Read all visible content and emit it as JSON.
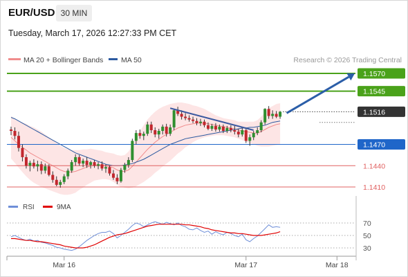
{
  "header": {
    "symbol": "EUR/USD",
    "timeframe": "30 MIN",
    "timestamp": "Tuesday, March 17, 2026 12:27:33 PM CET"
  },
  "legend": {
    "ma20_label": "MA 20 + Bollinger Bands",
    "ma20_color": "#f08c8c",
    "ma50_label": "MA 50",
    "ma50_color": "#2c5aa0",
    "source": "Research © 2026 Trading Central"
  },
  "rsi_legend": {
    "rsi_label": "RSI",
    "rsi_color": "#6f8fd8",
    "ma_label": "9MA",
    "ma_color": "#e00000"
  },
  "chart_data": {
    "type": "candlestick",
    "price_axis": {
      "min": 1.1395,
      "max": 1.1585
    },
    "x_ticks": [
      {
        "label": "Mar 16",
        "index": 14
      },
      {
        "label": "Mar 17",
        "index": 62
      },
      {
        "label": "Mar 18",
        "index": 86
      }
    ],
    "levels": [
      {
        "label": "1.1570",
        "value": 1.157,
        "color": "#4aa21a",
        "kind": "resistance"
      },
      {
        "label": "1.1545",
        "value": 1.1545,
        "color": "#4aa21a",
        "kind": "resistance"
      },
      {
        "label": "1.1516",
        "value": 1.1516,
        "color": "#333333",
        "kind": "last"
      },
      {
        "label": "1.1470",
        "value": 1.147,
        "color": "#1f66c9",
        "kind": "pivot"
      },
      {
        "label": "1.1440",
        "value": 1.144,
        "color": "#e06060",
        "kind": "support"
      },
      {
        "label": "1.1410",
        "value": 1.141,
        "color": "#e06060",
        "kind": "support"
      }
    ],
    "candles": [
      [
        1.1491,
        1.1495,
        1.1483,
        1.1489
      ],
      [
        1.1489,
        1.1494,
        1.1477,
        1.1482
      ],
      [
        1.1482,
        1.1488,
        1.146,
        1.1465
      ],
      [
        1.1465,
        1.147,
        1.1446,
        1.1452
      ],
      [
        1.1452,
        1.1456,
        1.1436,
        1.144
      ],
      [
        1.144,
        1.1447,
        1.1432,
        1.1444
      ],
      [
        1.1444,
        1.1449,
        1.1436,
        1.1439
      ],
      [
        1.1439,
        1.1447,
        1.1432,
        1.1442
      ],
      [
        1.1442,
        1.1446,
        1.1428,
        1.1433
      ],
      [
        1.1433,
        1.1443,
        1.1429,
        1.1439
      ],
      [
        1.1439,
        1.1442,
        1.1425,
        1.1427
      ],
      [
        1.1427,
        1.1432,
        1.1416,
        1.142
      ],
      [
        1.142,
        1.1425,
        1.1411,
        1.1413
      ],
      [
        1.1413,
        1.142,
        1.1409,
        1.1417
      ],
      [
        1.1417,
        1.1428,
        1.1414,
        1.1425
      ],
      [
        1.1425,
        1.1436,
        1.1421,
        1.1433
      ],
      [
        1.1433,
        1.1448,
        1.143,
        1.1445
      ],
      [
        1.1445,
        1.1456,
        1.144,
        1.1452
      ],
      [
        1.1452,
        1.1455,
        1.144,
        1.1443
      ],
      [
        1.1443,
        1.145,
        1.1438,
        1.1447
      ],
      [
        1.1447,
        1.1452,
        1.1437,
        1.1441
      ],
      [
        1.1441,
        1.1447,
        1.1436,
        1.1445
      ],
      [
        1.1445,
        1.1448,
        1.1437,
        1.144
      ],
      [
        1.144,
        1.1445,
        1.1435,
        1.1442
      ],
      [
        1.1442,
        1.1446,
        1.1433,
        1.1436
      ],
      [
        1.1436,
        1.1442,
        1.143,
        1.1438
      ],
      [
        1.1438,
        1.144,
        1.1426,
        1.1429
      ],
      [
        1.1429,
        1.1434,
        1.142,
        1.1423
      ],
      [
        1.1423,
        1.1428,
        1.1414,
        1.1418
      ],
      [
        1.1418,
        1.1437,
        1.1416,
        1.1434
      ],
      [
        1.1434,
        1.1444,
        1.143,
        1.1441
      ],
      [
        1.1441,
        1.1452,
        1.1437,
        1.1448
      ],
      [
        1.1448,
        1.1478,
        1.1445,
        1.1475
      ],
      [
        1.1475,
        1.149,
        1.147,
        1.1486
      ],
      [
        1.1486,
        1.1491,
        1.1478,
        1.1482
      ],
      [
        1.1482,
        1.1488,
        1.1476,
        1.1485
      ],
      [
        1.1485,
        1.1502,
        1.1482,
        1.1498
      ],
      [
        1.1498,
        1.1502,
        1.1486,
        1.149
      ],
      [
        1.149,
        1.1494,
        1.148,
        1.1484
      ],
      [
        1.1484,
        1.1492,
        1.1478,
        1.1489
      ],
      [
        1.1489,
        1.1498,
        1.1484,
        1.1495
      ],
      [
        1.1495,
        1.1499,
        1.1481,
        1.1485
      ],
      [
        1.1485,
        1.1498,
        1.1482,
        1.1494
      ],
      [
        1.1494,
        1.152,
        1.149,
        1.1518
      ],
      [
        1.1518,
        1.1523,
        1.151,
        1.1513
      ],
      [
        1.1513,
        1.1518,
        1.1505,
        1.1509
      ],
      [
        1.1509,
        1.1514,
        1.1504,
        1.1507
      ],
      [
        1.1507,
        1.1511,
        1.1502,
        1.1505
      ],
      [
        1.1505,
        1.1509,
        1.15,
        1.1503
      ],
      [
        1.1503,
        1.1507,
        1.1497,
        1.15
      ],
      [
        1.15,
        1.1506,
        1.1496,
        1.1502
      ],
      [
        1.1502,
        1.1505,
        1.1494,
        1.1497
      ],
      [
        1.1497,
        1.1501,
        1.149,
        1.1492
      ],
      [
        1.1492,
        1.1499,
        1.1489,
        1.1496
      ],
      [
        1.1496,
        1.15,
        1.1488,
        1.1491
      ],
      [
        1.1491,
        1.1498,
        1.1488,
        1.1495
      ],
      [
        1.1495,
        1.1498,
        1.1486,
        1.1489
      ],
      [
        1.1489,
        1.1496,
        1.1486,
        1.1493
      ],
      [
        1.1493,
        1.1497,
        1.1487,
        1.149
      ],
      [
        1.149,
        1.1496,
        1.1484,
        1.1488
      ],
      [
        1.1488,
        1.1492,
        1.148,
        1.1484
      ],
      [
        1.1484,
        1.1493,
        1.1481,
        1.149
      ],
      [
        1.149,
        1.1494,
        1.1472,
        1.1475
      ],
      [
        1.1475,
        1.1484,
        1.1468,
        1.148
      ],
      [
        1.148,
        1.1489,
        1.1476,
        1.1486
      ],
      [
        1.1486,
        1.1494,
        1.1483,
        1.149
      ],
      [
        1.149,
        1.1504,
        1.1487,
        1.1501
      ],
      [
        1.1501,
        1.1521,
        1.1498,
        1.152
      ],
      [
        1.152,
        1.1524,
        1.1506,
        1.151
      ],
      [
        1.151,
        1.1518,
        1.1506,
        1.1513
      ],
      [
        1.1513,
        1.1517,
        1.1507,
        1.1509
      ],
      [
        1.1509,
        1.1517,
        1.1506,
        1.1516
      ]
    ],
    "ma20": [
      1.148,
      1.1475,
      1.147,
      1.1466,
      1.1462,
      1.1458,
      1.1455,
      1.1452,
      1.1449,
      1.1446,
      1.1443,
      1.144,
      1.1437,
      1.1434,
      1.1432,
      1.1431,
      1.1431,
      1.1432,
      1.1434,
      1.1436,
      1.1438,
      1.144,
      1.1441,
      1.1441,
      1.1441,
      1.144,
      1.1439,
      1.1437,
      1.1434,
      1.1432,
      1.1432,
      1.1434,
      1.1439,
      1.1445,
      1.1451,
      1.1457,
      1.1463,
      1.1468,
      1.1473,
      1.1477,
      1.1481,
      1.1484,
      1.1487,
      1.149,
      1.1493,
      1.1495,
      1.1497,
      1.1498,
      1.1499,
      1.15,
      1.15,
      1.15,
      1.1499,
      1.1498,
      1.1497,
      1.1496,
      1.1495,
      1.1494,
      1.1493,
      1.1492,
      1.149,
      1.1489,
      1.1488,
      1.1487,
      1.1486,
      1.1486,
      1.1488,
      1.1491,
      1.1494,
      1.1496,
      1.1498,
      1.1499
    ],
    "bb_width": [
      0.003,
      0.0031,
      0.0033,
      0.0035,
      0.0037,
      0.0038,
      0.0039,
      0.0039,
      0.0039,
      0.0038,
      0.0037,
      0.0036,
      0.0035,
      0.0034,
      0.0033,
      0.0032,
      0.0031,
      0.003,
      0.0028,
      0.0027,
      0.0025,
      0.0024,
      0.0022,
      0.0021,
      0.002,
      0.0019,
      0.0019,
      0.002,
      0.0021,
      0.0022,
      0.0023,
      0.0026,
      0.003,
      0.0034,
      0.0037,
      0.004,
      0.0042,
      0.0043,
      0.0043,
      0.0043,
      0.0042,
      0.0041,
      0.004,
      0.0038,
      0.0036,
      0.0034,
      0.0031,
      0.0029,
      0.0026,
      0.0024,
      0.0022,
      0.002,
      0.0018,
      0.0016,
      0.0014,
      0.0013,
      0.0012,
      0.0012,
      0.0012,
      0.0012,
      0.0012,
      0.0013,
      0.0014,
      0.0015,
      0.0016,
      0.0018,
      0.0021,
      0.0024,
      0.0027,
      0.0028,
      0.0029,
      0.0029
    ],
    "ma50": [
      1.1508,
      1.1506,
      1.1503,
      1.15,
      1.1497,
      1.1494,
      1.1491,
      1.1488,
      1.1485,
      1.1482,
      1.1479,
      1.1476,
      1.1473,
      1.147,
      1.1467,
      1.1464,
      1.1461,
      1.1458,
      1.1456,
      1.1454,
      1.1452,
      1.145,
      1.1448,
      1.1446,
      1.1444,
      1.1442,
      1.1441,
      1.144,
      1.144,
      1.144,
      1.1441,
      1.1442,
      1.1443,
      1.1445,
      1.1447,
      1.1449,
      1.1452,
      1.1455,
      1.1458,
      1.1461,
      1.1464,
      1.1467,
      1.147,
      1.1472,
      1.1474,
      1.1476,
      1.1478,
      1.1479,
      1.148,
      1.1481,
      1.1482,
      1.1483,
      1.1484,
      1.1485,
      1.1486,
      1.1487,
      1.1488,
      1.1489,
      1.149,
      1.1491,
      1.1492,
      1.1493,
      1.1493,
      1.1494,
      1.1494,
      1.1495,
      1.1496,
      1.1497,
      1.1499,
      1.1501,
      1.1502,
      1.1503
    ],
    "trend_line": {
      "from": [
        42,
        1.1521
      ],
      "to": [
        64,
        1.149
      ],
      "color": "#3c5aa0"
    },
    "forecast_arrow": {
      "from": [
        72,
        1.1516
      ],
      "to": [
        79,
        1.157
      ],
      "color": "#2b5ea8"
    },
    "rsi_panel": {
      "levels": [
        70,
        50,
        30
      ],
      "axis": {
        "min": 18,
        "max": 78
      },
      "rsi": [
        48,
        50,
        47,
        44,
        42,
        44,
        41,
        42,
        39,
        38,
        36,
        34,
        31,
        30,
        28,
        27,
        26,
        28,
        32,
        37,
        42,
        46,
        50,
        53,
        55,
        55,
        57,
        53,
        46,
        50,
        55,
        60,
        66,
        70,
        68,
        64,
        67,
        70,
        72,
        70,
        68,
        71,
        69,
        67,
        70,
        66,
        64,
        60,
        59,
        62,
        58,
        55,
        57,
        52,
        56,
        53,
        51,
        55,
        53,
        50,
        48,
        52,
        43,
        40,
        45,
        49,
        55,
        61,
        67,
        63,
        64,
        63
      ],
      "ma9": [
        45,
        45,
        44,
        43,
        42,
        42,
        41,
        40,
        40,
        39,
        38,
        37,
        36,
        35,
        33,
        32,
        31,
        30,
        30,
        30,
        31,
        33,
        35,
        38,
        41,
        44,
        47,
        49,
        51,
        52,
        53,
        55,
        57,
        59,
        61,
        63,
        65,
        66,
        67,
        68,
        68,
        68,
        68,
        68,
        68,
        68,
        67,
        67,
        66,
        65,
        64,
        62,
        61,
        59,
        58,
        57,
        56,
        55,
        54,
        54,
        53,
        53,
        52,
        51,
        50,
        50,
        50,
        51,
        52,
        53,
        54,
        56
      ]
    }
  }
}
